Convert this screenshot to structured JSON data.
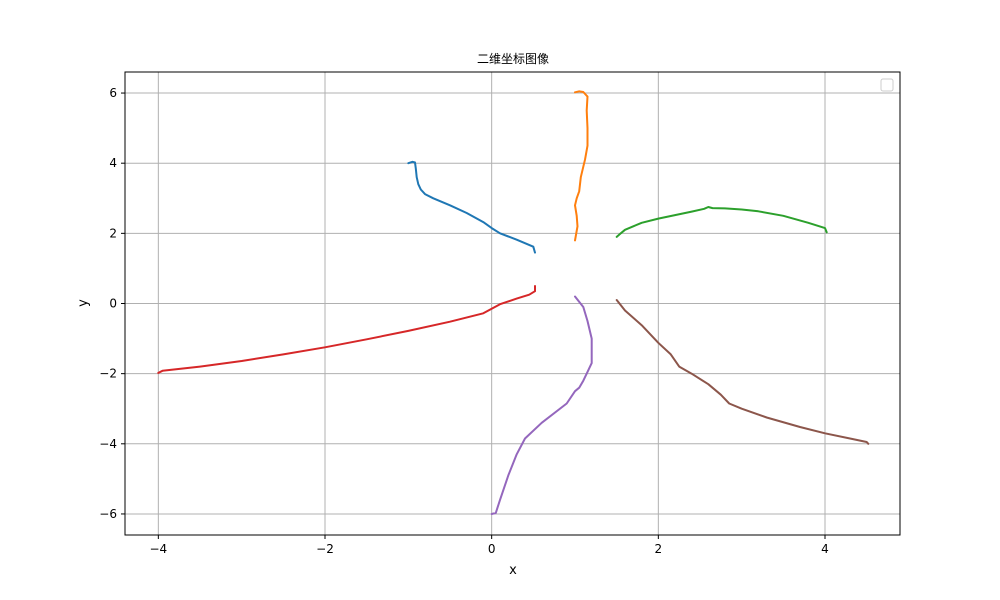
{
  "chart_data": {
    "type": "line",
    "title": "二维坐标图像",
    "xlabel": "x",
    "ylabel": "y",
    "xlim": [
      -4.4,
      4.9
    ],
    "ylim": [
      -6.6,
      6.6
    ],
    "xticks": [
      -4,
      -2,
      0,
      2,
      4
    ],
    "yticks": [
      -6,
      -4,
      -2,
      0,
      2,
      4,
      6
    ],
    "xtick_labels": [
      "−4",
      "−2",
      "0",
      "2",
      "4"
    ],
    "ytick_labels": [
      "−6",
      "−4",
      "−2",
      "0",
      "2",
      "4",
      "6"
    ],
    "grid": true,
    "legend": {
      "placement": "upper-right",
      "entries": []
    },
    "series": [
      {
        "color": "#1f77b4",
        "x": [
          -1.0,
          -0.95,
          -0.92,
          -0.91,
          -0.9,
          -0.88,
          -0.85,
          -0.8,
          -0.7,
          -0.5,
          -0.3,
          -0.1,
          0.0,
          0.1,
          0.3,
          0.5,
          0.52
        ],
        "y": [
          4.0,
          4.04,
          4.02,
          3.85,
          3.6,
          3.4,
          3.25,
          3.12,
          3.0,
          2.8,
          2.58,
          2.32,
          2.15,
          2.0,
          1.82,
          1.62,
          1.45
        ]
      },
      {
        "color": "#ff7f0e",
        "x": [
          1.0,
          1.05,
          1.1,
          1.15,
          1.14,
          1.15,
          1.15,
          1.12,
          1.1,
          1.07,
          1.05,
          1.02,
          1.0,
          1.02,
          1.03,
          1.0
        ],
        "y": [
          6.02,
          6.05,
          6.03,
          5.9,
          5.5,
          5.0,
          4.5,
          4.1,
          3.9,
          3.6,
          3.2,
          3.0,
          2.8,
          2.5,
          2.2,
          1.8
        ]
      },
      {
        "color": "#2ca02c",
        "x": [
          1.5,
          1.55,
          1.6,
          1.7,
          1.8,
          2.0,
          2.2,
          2.4,
          2.55,
          2.6,
          2.65,
          2.8,
          3.0,
          3.2,
          3.5,
          3.8,
          4.0,
          4.02
        ],
        "y": [
          1.9,
          2.0,
          2.1,
          2.2,
          2.3,
          2.42,
          2.52,
          2.62,
          2.7,
          2.75,
          2.72,
          2.71,
          2.68,
          2.63,
          2.5,
          2.3,
          2.15,
          2.03
        ]
      },
      {
        "color": "#d62728",
        "x": [
          -4.0,
          -3.95,
          -3.5,
          -3.0,
          -2.5,
          -2.0,
          -1.5,
          -1.0,
          -0.5,
          -0.1,
          0.1,
          0.3,
          0.45,
          0.52,
          0.52
        ],
        "y": [
          -1.98,
          -1.92,
          -1.8,
          -1.64,
          -1.45,
          -1.25,
          -1.02,
          -0.78,
          -0.52,
          -0.28,
          -0.02,
          0.14,
          0.25,
          0.35,
          0.5
        ]
      },
      {
        "color": "#9467bd",
        "x": [
          1.0,
          1.1,
          1.15,
          1.2,
          1.2,
          1.15,
          1.1,
          1.05,
          1.0,
          0.9,
          0.6,
          0.4,
          0.3,
          0.2,
          0.1,
          0.05,
          0.0
        ],
        "y": [
          0.2,
          -0.1,
          -0.5,
          -1.0,
          -1.7,
          -1.95,
          -2.2,
          -2.4,
          -2.5,
          -2.85,
          -3.4,
          -3.85,
          -4.3,
          -4.9,
          -5.6,
          -5.97,
          -6.0
        ]
      },
      {
        "color": "#8c564b",
        "x": [
          1.5,
          1.6,
          1.8,
          2.0,
          2.15,
          2.25,
          2.4,
          2.6,
          2.75,
          2.85,
          3.0,
          3.3,
          3.7,
          4.0,
          4.3,
          4.5,
          4.52
        ],
        "y": [
          0.1,
          -0.2,
          -0.62,
          -1.12,
          -1.45,
          -1.8,
          -2.0,
          -2.3,
          -2.6,
          -2.85,
          -3.0,
          -3.25,
          -3.52,
          -3.7,
          -3.85,
          -3.95,
          -4.0
        ]
      }
    ]
  }
}
